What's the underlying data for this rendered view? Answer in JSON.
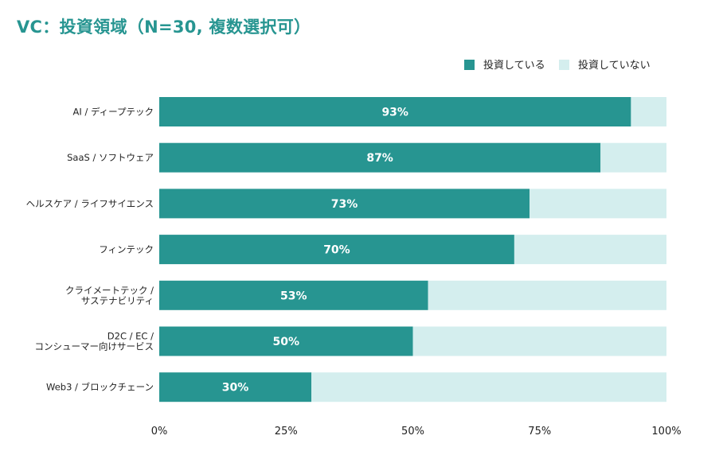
{
  "chart_data": {
    "type": "bar",
    "orientation": "horizontal",
    "stacked": true,
    "title": "VC：投資領域（N=30, 複数選択可）",
    "categories": [
      [
        "AI / ディープテック"
      ],
      [
        "SaaS / ソフトウェア"
      ],
      [
        "ヘルスケア / ライフサイエンス"
      ],
      [
        "フィンテック"
      ],
      [
        "クライメートテック /",
        "サステナビリティ"
      ],
      [
        "D2C / EC /",
        "コンシューマー向けサービス"
      ],
      [
        "Web3 / ブロックチェーン"
      ]
    ],
    "series": [
      {
        "name": "投資している",
        "values": [
          93,
          87,
          73,
          70,
          53,
          50,
          30
        ],
        "color": "#279591"
      },
      {
        "name": "投資していない",
        "values": [
          7,
          13,
          27,
          30,
          47,
          50,
          70
        ],
        "color": "#d4eeee"
      }
    ],
    "data_labels": [
      "93%",
      "87%",
      "73%",
      "70%",
      "53%",
      "50%",
      "30%"
    ],
    "xlim": [
      0,
      100
    ],
    "xticks": [
      "0%",
      "25%",
      "50%",
      "75%",
      "100%"
    ],
    "xlabel": "",
    "ylabel": "",
    "grid": false,
    "legend_position": "top-right"
  }
}
